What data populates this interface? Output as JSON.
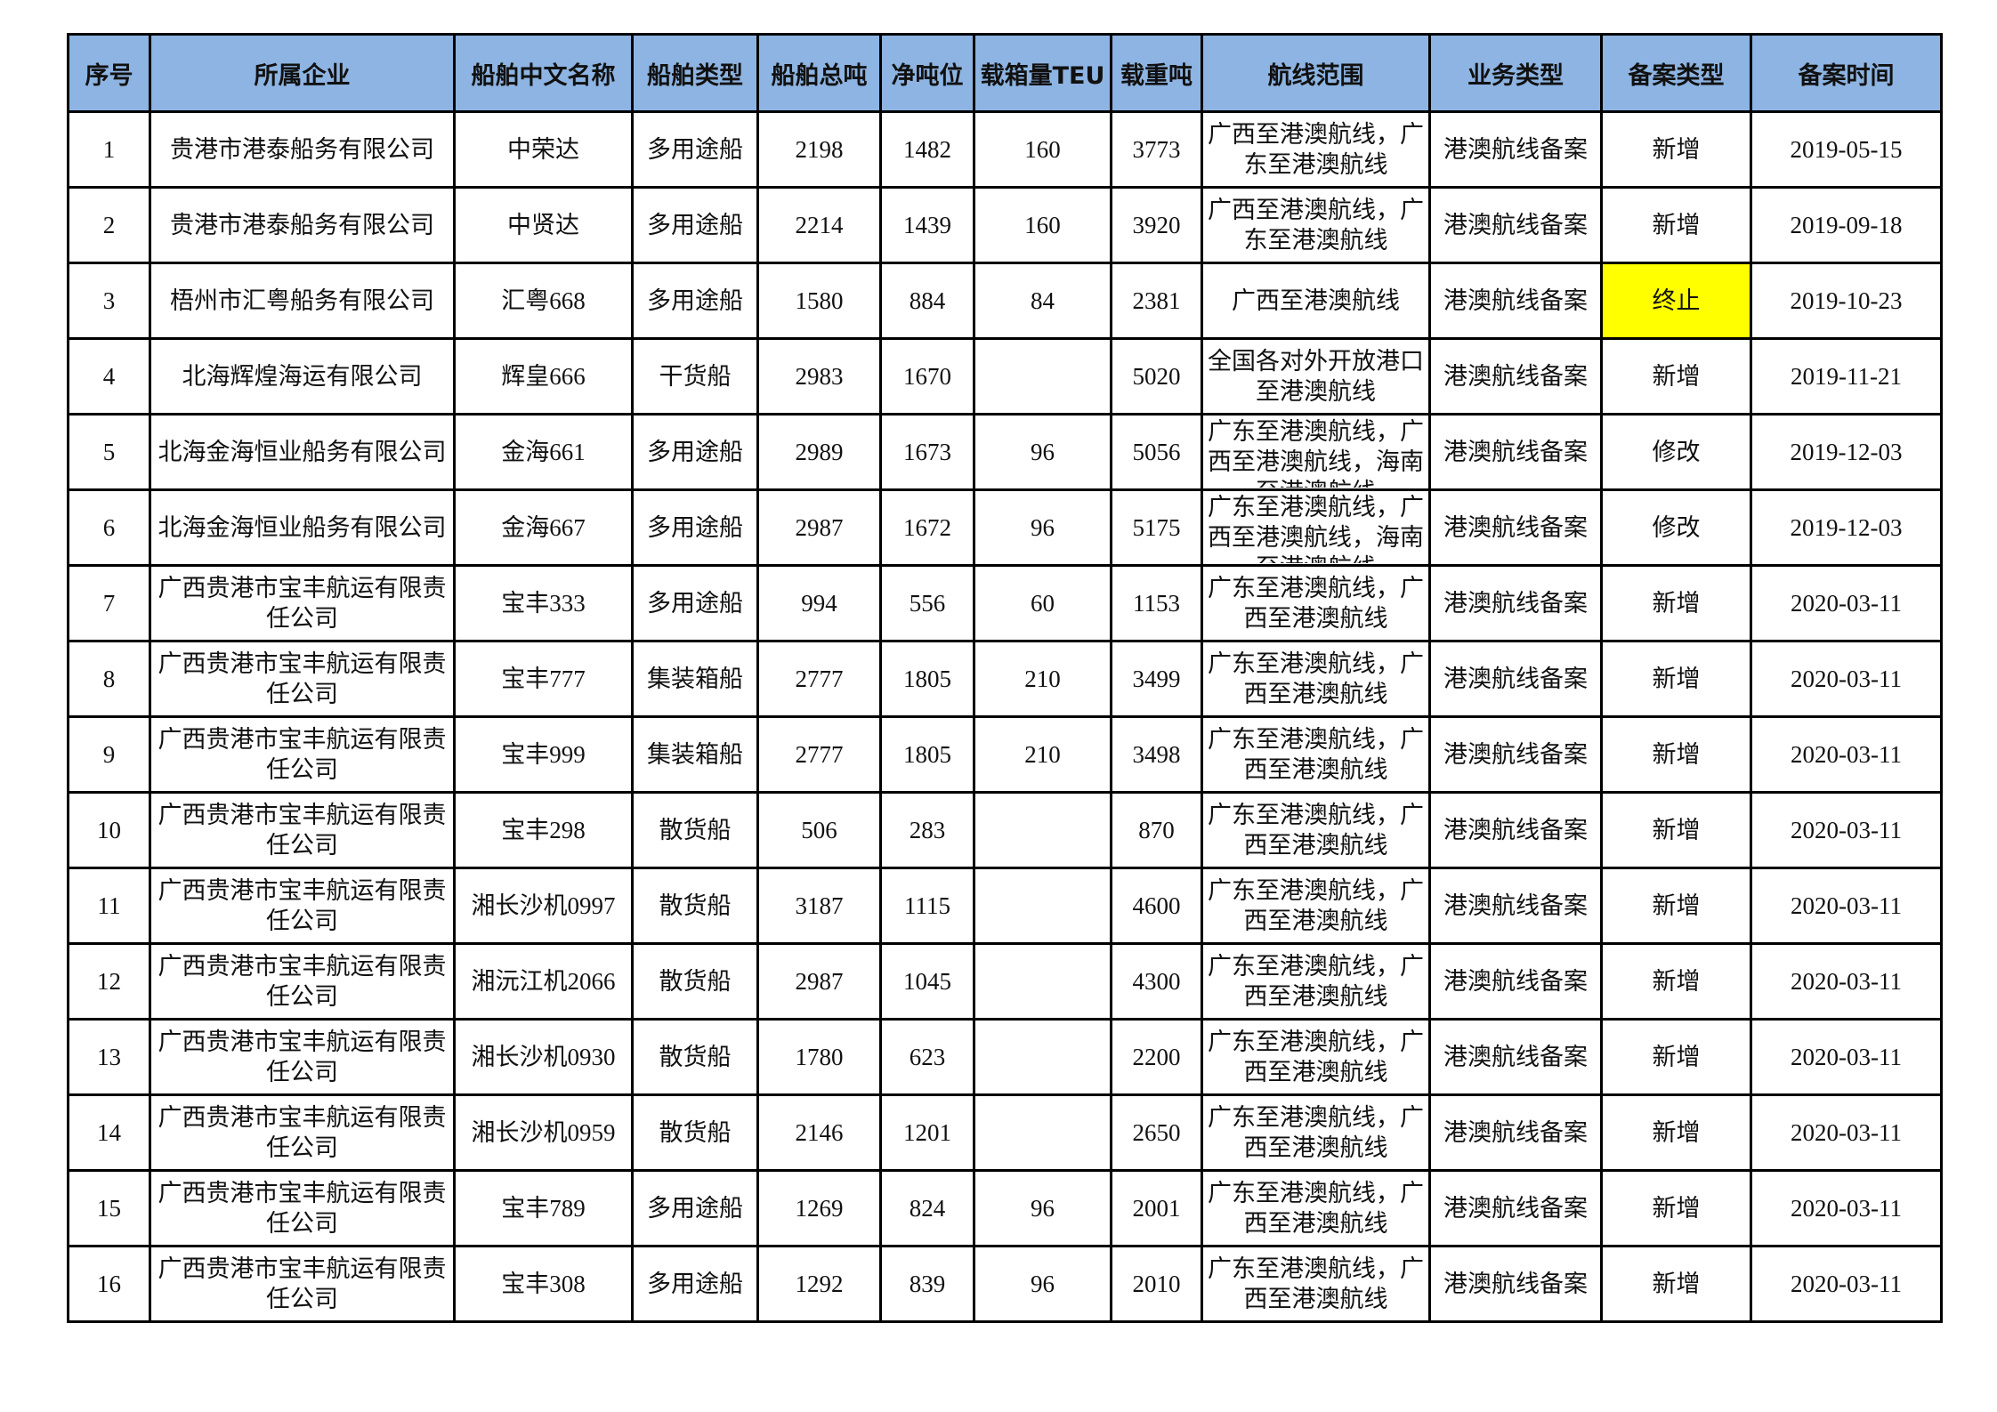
{
  "table": {
    "headers": [
      "序号",
      "所属企业",
      "船舶中文名称",
      "船舶类型",
      "船舶总吨",
      "净吨位",
      "载箱量TEU",
      "载重吨",
      "航线范围",
      "业务类型",
      "备案类型",
      "备案时间"
    ],
    "highlight_color": "#ffff00",
    "header_color": "#8db4e2",
    "rows": [
      {
        "cells": [
          "1",
          "贵港市港泰船务有限公司",
          "中荣达",
          "多用途船",
          "2198",
          "1482",
          "160",
          "3773",
          "广西至港澳航线，广东至港澳航线",
          "港澳航线备案",
          "新增",
          "2019-05-15"
        ]
      },
      {
        "cells": [
          "2",
          "贵港市港泰船务有限公司",
          "中贤达",
          "多用途船",
          "2214",
          "1439",
          "160",
          "3920",
          "广西至港澳航线，广东至港澳航线",
          "港澳航线备案",
          "新增",
          "2019-09-18"
        ]
      },
      {
        "cells": [
          "3",
          "梧州市汇粤船务有限公司",
          "汇粤668",
          "多用途船",
          "1580",
          "884",
          "84",
          "2381",
          "广西至港澳航线",
          "港澳航线备案",
          "终止",
          "2019-10-23"
        ],
        "highlight_col": 10
      },
      {
        "cells": [
          "4",
          "北海辉煌海运有限公司",
          "辉皇666",
          "干货船",
          "2983",
          "1670",
          "",
          "5020",
          "全国各对外开放港口至港澳航线",
          "港澳航线备案",
          "新增",
          "2019-11-21"
        ]
      },
      {
        "cells": [
          "5",
          "北海金海恒业船务有限公司",
          "金海661",
          "多用途船",
          "2989",
          "1673",
          "96",
          "5056",
          "广东至港澳航线，广西至港澳航线，海南至港澳航线",
          "港澳航线备案",
          "修改",
          "2019-12-03"
        ]
      },
      {
        "cells": [
          "6",
          "北海金海恒业船务有限公司",
          "金海667",
          "多用途船",
          "2987",
          "1672",
          "96",
          "5175",
          "广东至港澳航线，广西至港澳航线，海南至港澳航线",
          "港澳航线备案",
          "修改",
          "2019-12-03"
        ]
      },
      {
        "cells": [
          "7",
          "广西贵港市宝丰航运有限责任公司",
          "宝丰333",
          "多用途船",
          "994",
          "556",
          "60",
          "1153",
          "广东至港澳航线，广西至港澳航线",
          "港澳航线备案",
          "新增",
          "2020-03-11"
        ]
      },
      {
        "cells": [
          "8",
          "广西贵港市宝丰航运有限责任公司",
          "宝丰777",
          "集装箱船",
          "2777",
          "1805",
          "210",
          "3499",
          "广东至港澳航线，广西至港澳航线",
          "港澳航线备案",
          "新增",
          "2020-03-11"
        ]
      },
      {
        "cells": [
          "9",
          "广西贵港市宝丰航运有限责任公司",
          "宝丰999",
          "集装箱船",
          "2777",
          "1805",
          "210",
          "3498",
          "广东至港澳航线，广西至港澳航线",
          "港澳航线备案",
          "新增",
          "2020-03-11"
        ]
      },
      {
        "cells": [
          "10",
          "广西贵港市宝丰航运有限责任公司",
          "宝丰298",
          "散货船",
          "506",
          "283",
          "",
          "870",
          "广东至港澳航线，广西至港澳航线",
          "港澳航线备案",
          "新增",
          "2020-03-11"
        ]
      },
      {
        "cells": [
          "11",
          "广西贵港市宝丰航运有限责任公司",
          "湘长沙机0997",
          "散货船",
          "3187",
          "1115",
          "",
          "4600",
          "广东至港澳航线，广西至港澳航线",
          "港澳航线备案",
          "新增",
          "2020-03-11"
        ]
      },
      {
        "cells": [
          "12",
          "广西贵港市宝丰航运有限责任公司",
          "湘沅江机2066",
          "散货船",
          "2987",
          "1045",
          "",
          "4300",
          "广东至港澳航线，广西至港澳航线",
          "港澳航线备案",
          "新增",
          "2020-03-11"
        ]
      },
      {
        "cells": [
          "13",
          "广西贵港市宝丰航运有限责任公司",
          "湘长沙机0930",
          "散货船",
          "1780",
          "623",
          "",
          "2200",
          "广东至港澳航线，广西至港澳航线",
          "港澳航线备案",
          "新增",
          "2020-03-11"
        ]
      },
      {
        "cells": [
          "14",
          "广西贵港市宝丰航运有限责任公司",
          "湘长沙机0959",
          "散货船",
          "2146",
          "1201",
          "",
          "2650",
          "广东至港澳航线，广西至港澳航线",
          "港澳航线备案",
          "新增",
          "2020-03-11"
        ]
      },
      {
        "cells": [
          "15",
          "广西贵港市宝丰航运有限责任公司",
          "宝丰789",
          "多用途船",
          "1269",
          "824",
          "96",
          "2001",
          "广东至港澳航线，广西至港澳航线",
          "港澳航线备案",
          "新增",
          "2020-03-11"
        ]
      },
      {
        "cells": [
          "16",
          "广西贵港市宝丰航运有限责任公司",
          "宝丰308",
          "多用途船",
          "1292",
          "839",
          "96",
          "2010",
          "广东至港澳航线，广西至港澳航线",
          "港澳航线备案",
          "新增",
          "2020-03-11"
        ]
      }
    ]
  }
}
